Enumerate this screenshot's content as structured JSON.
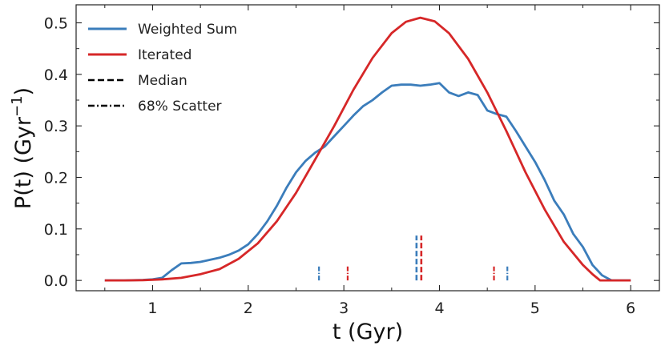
{
  "chart_data": {
    "type": "line",
    "xlabel": "t (Gyr)",
    "ylabel_base": "P(t) (Gyr",
    "ylabel_exp": "−1",
    "ylabel_close": ")",
    "xlim": [
      0.2,
      6.3
    ],
    "ylim": [
      -0.02,
      0.535
    ],
    "xticks": [
      1,
      2,
      3,
      4,
      5,
      6
    ],
    "yticks": [
      0.0,
      0.1,
      0.2,
      0.3,
      0.4,
      0.5
    ],
    "xtick_labels": [
      "1",
      "2",
      "3",
      "4",
      "5",
      "6"
    ],
    "ytick_labels": [
      "0.0",
      "0.1",
      "0.2",
      "0.3",
      "0.4",
      "0.5"
    ],
    "legend_position": "top-left",
    "series": [
      {
        "name": "Weighted Sum",
        "color": "#3b7dbb",
        "x": [
          0.5,
          0.7,
          0.9,
          1.0,
          1.1,
          1.2,
          1.3,
          1.4,
          1.5,
          1.6,
          1.7,
          1.8,
          1.9,
          2.0,
          2.1,
          2.2,
          2.3,
          2.4,
          2.5,
          2.6,
          2.7,
          2.8,
          2.9,
          3.0,
          3.1,
          3.2,
          3.3,
          3.4,
          3.5,
          3.6,
          3.7,
          3.8,
          3.9,
          4.0,
          4.1,
          4.2,
          4.3,
          4.4,
          4.5,
          4.6,
          4.7,
          4.8,
          4.9,
          5.0,
          5.1,
          5.2,
          5.3,
          5.4,
          5.5,
          5.6,
          5.7,
          5.8,
          5.9,
          6.0
        ],
        "y": [
          0.0,
          0.0,
          0.001,
          0.002,
          0.005,
          0.02,
          0.033,
          0.034,
          0.036,
          0.04,
          0.044,
          0.05,
          0.058,
          0.07,
          0.09,
          0.115,
          0.145,
          0.18,
          0.21,
          0.232,
          0.248,
          0.26,
          0.28,
          0.3,
          0.32,
          0.338,
          0.35,
          0.365,
          0.378,
          0.38,
          0.38,
          0.378,
          0.38,
          0.383,
          0.365,
          0.358,
          0.365,
          0.36,
          0.33,
          0.323,
          0.318,
          0.29,
          0.26,
          0.23,
          0.195,
          0.155,
          0.128,
          0.09,
          0.065,
          0.03,
          0.01,
          0.0,
          0.0,
          0.0
        ]
      },
      {
        "name": "Iterated",
        "color": "#d62728",
        "x": [
          0.5,
          0.7,
          0.9,
          1.1,
          1.3,
          1.5,
          1.7,
          1.9,
          2.1,
          2.3,
          2.5,
          2.7,
          2.9,
          3.1,
          3.3,
          3.5,
          3.65,
          3.8,
          3.95,
          4.1,
          4.3,
          4.5,
          4.7,
          4.9,
          5.1,
          5.3,
          5.5,
          5.6,
          5.68,
          5.8,
          6.0
        ],
        "y": [
          0.0,
          0.0,
          0.0005,
          0.002,
          0.005,
          0.012,
          0.022,
          0.042,
          0.072,
          0.115,
          0.17,
          0.235,
          0.3,
          0.37,
          0.432,
          0.48,
          0.502,
          0.51,
          0.503,
          0.48,
          0.43,
          0.365,
          0.29,
          0.21,
          0.138,
          0.075,
          0.03,
          0.012,
          0.0,
          0.0,
          0.0
        ]
      }
    ],
    "markers": {
      "median": [
        {
          "x": 3.76,
          "color": "#3b7dbb"
        },
        {
          "x": 3.81,
          "color": "#d62728"
        }
      ],
      "scatter": [
        {
          "x": 2.74,
          "color": "#3b7dbb"
        },
        {
          "x": 3.04,
          "color": "#d62728"
        },
        {
          "x": 4.57,
          "color": "#d62728"
        },
        {
          "x": 4.71,
          "color": "#3b7dbb"
        }
      ],
      "median_y_range": [
        0.0,
        0.087
      ],
      "scatter_y_range": [
        0.0,
        0.027
      ]
    },
    "legend": [
      {
        "label": "Weighted Sum",
        "style": "solid",
        "color": "#3b7dbb"
      },
      {
        "label": "Iterated",
        "style": "solid",
        "color": "#d62728"
      },
      {
        "label": "Median",
        "style": "dashed",
        "color": "#000000"
      },
      {
        "label": "68% Scatter",
        "style": "dashdot",
        "color": "#000000"
      }
    ]
  }
}
